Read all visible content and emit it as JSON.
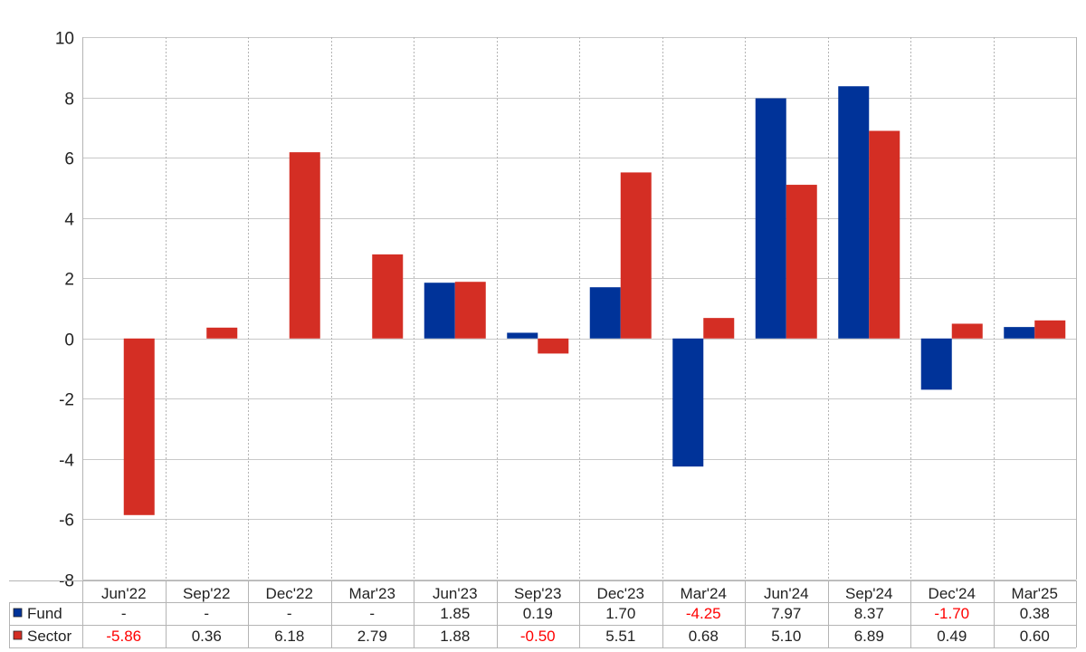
{
  "chart_data": {
    "type": "bar",
    "categories": [
      "Jun'22",
      "Sep'22",
      "Dec'22",
      "Mar'23",
      "Jun'23",
      "Sep'23",
      "Dec'23",
      "Mar'24",
      "Jun'24",
      "Sep'24",
      "Dec'24",
      "Mar'25"
    ],
    "series": [
      {
        "name": "Fund",
        "color": "#003399",
        "values": [
          null,
          null,
          null,
          null,
          1.85,
          0.19,
          1.7,
          -4.25,
          7.97,
          8.37,
          -1.7,
          0.38
        ],
        "labels": [
          "-",
          "-",
          "-",
          "-",
          "1.85",
          "0.19",
          "1.70",
          "-4.25",
          "7.97",
          "8.37",
          "-1.70",
          "0.38"
        ]
      },
      {
        "name": "Sector",
        "color": "#d42e24",
        "values": [
          -5.86,
          0.36,
          6.18,
          2.79,
          1.88,
          -0.5,
          5.51,
          0.68,
          5.1,
          6.89,
          0.49,
          0.6
        ],
        "labels": [
          "-5.86",
          "0.36",
          "6.18",
          "2.79",
          "1.88",
          "-0.50",
          "5.51",
          "0.68",
          "5.10",
          "6.89",
          "0.49",
          "0.60"
        ]
      }
    ],
    "ylim": [
      -8,
      10
    ],
    "yticks": [
      10,
      8,
      6,
      4,
      2,
      0,
      -2,
      -4,
      -6,
      -8
    ],
    "negative_label_color": "#ff0000",
    "grid": true,
    "legend": "data-table-bottom"
  }
}
